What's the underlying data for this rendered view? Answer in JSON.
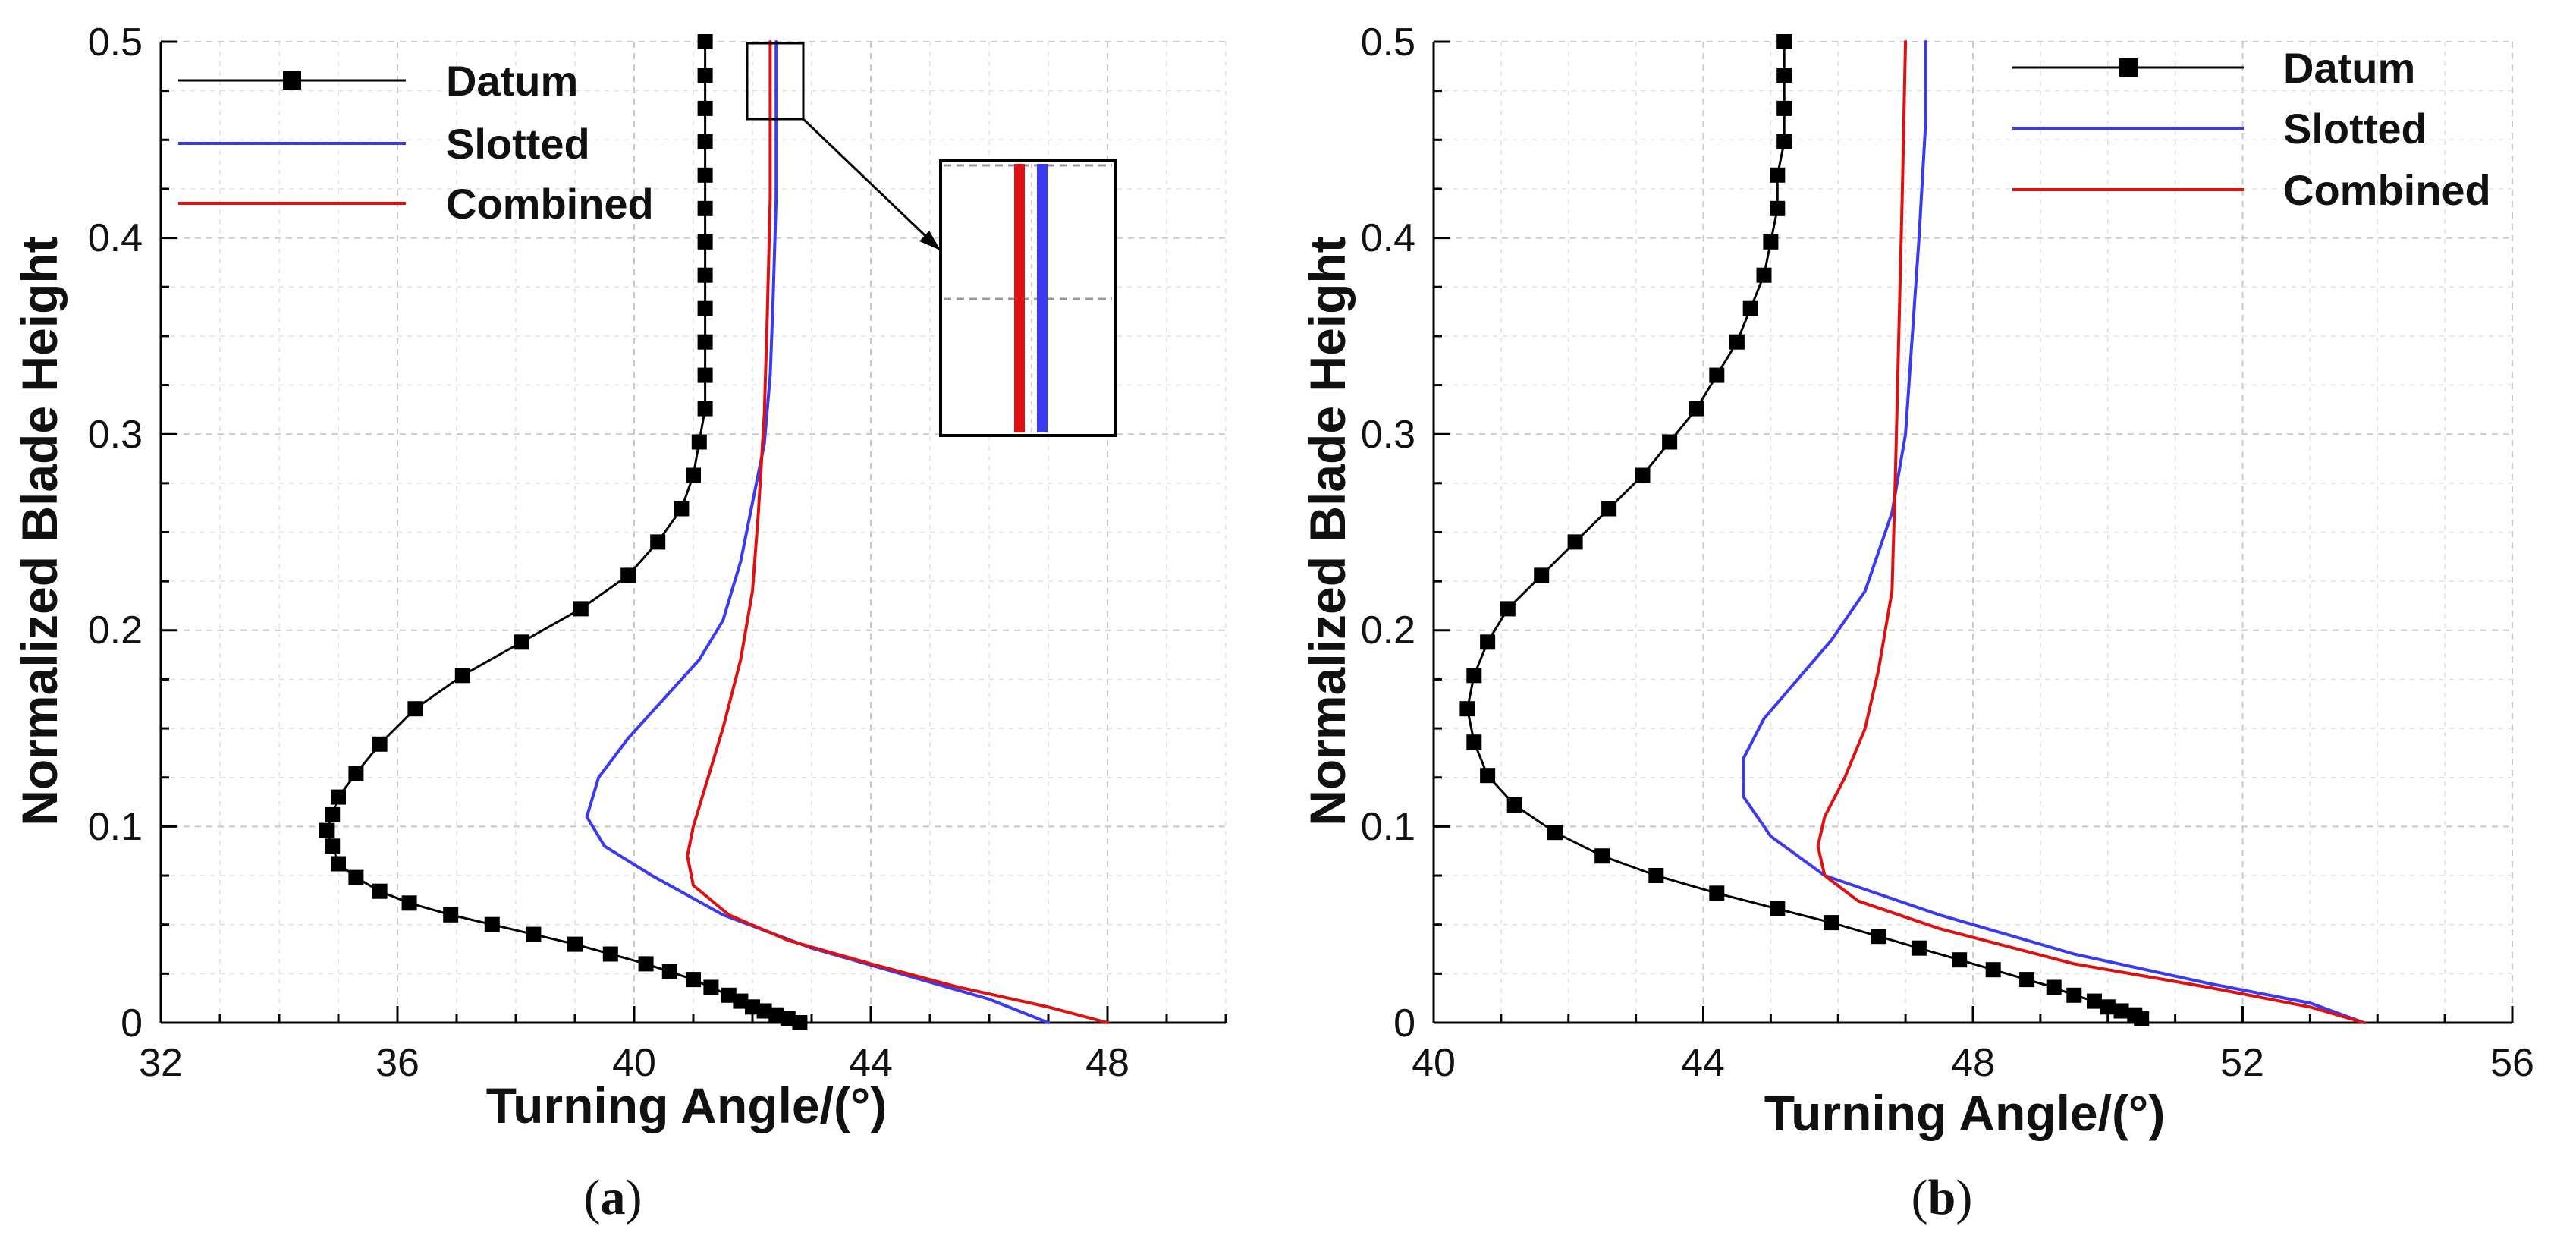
{
  "chart_data": [
    {
      "type": "line",
      "panel": "a",
      "panel_label": "a",
      "xlabel": "Turning Angle/(°)",
      "ylabel": "Normalized Blade Height",
      "xlim": [
        32,
        50
      ],
      "ylim": [
        0,
        0.5
      ],
      "xticks": [
        32,
        36,
        40,
        44,
        48
      ],
      "yticks": [
        0,
        0.1,
        0.2,
        0.3,
        0.4,
        0.5
      ],
      "grid": true,
      "legend": "top-left",
      "series": [
        {
          "name": "Datum",
          "color": "#000000",
          "marker": "square",
          "points": [
            [
              42.8,
              0.0
            ],
            [
              42.6,
              0.002
            ],
            [
              42.4,
              0.004
            ],
            [
              42.2,
              0.006
            ],
            [
              42.0,
              0.008
            ],
            [
              41.8,
              0.011
            ],
            [
              41.6,
              0.014
            ],
            [
              41.3,
              0.018
            ],
            [
              41.0,
              0.022
            ],
            [
              40.6,
              0.026
            ],
            [
              40.2,
              0.03
            ],
            [
              39.6,
              0.035
            ],
            [
              39.0,
              0.04
            ],
            [
              38.3,
              0.045
            ],
            [
              37.6,
              0.05
            ],
            [
              36.9,
              0.055
            ],
            [
              36.2,
              0.061
            ],
            [
              35.7,
              0.067
            ],
            [
              35.3,
              0.074
            ],
            [
              35.0,
              0.081
            ],
            [
              34.9,
              0.09
            ],
            [
              34.8,
              0.098
            ],
            [
              34.9,
              0.106
            ],
            [
              35.0,
              0.115
            ],
            [
              35.3,
              0.127
            ],
            [
              35.7,
              0.142
            ],
            [
              36.3,
              0.16
            ],
            [
              37.1,
              0.177
            ],
            [
              38.1,
              0.194
            ],
            [
              39.1,
              0.211
            ],
            [
              39.9,
              0.228
            ],
            [
              40.4,
              0.245
            ],
            [
              40.8,
              0.262
            ],
            [
              41.0,
              0.279
            ],
            [
              41.1,
              0.296
            ],
            [
              41.2,
              0.313
            ],
            [
              41.2,
              0.33
            ],
            [
              41.2,
              0.347
            ],
            [
              41.2,
              0.364
            ],
            [
              41.2,
              0.381
            ],
            [
              41.2,
              0.398
            ],
            [
              41.2,
              0.415
            ],
            [
              41.2,
              0.432
            ],
            [
              41.2,
              0.449
            ],
            [
              41.2,
              0.466
            ],
            [
              41.2,
              0.483
            ],
            [
              41.2,
              0.5
            ]
          ]
        },
        {
          "name": "Slotted",
          "color": "#3a3af0",
          "marker": "none",
          "points": [
            [
              47.0,
              0.0
            ],
            [
              46.0,
              0.012
            ],
            [
              44.5,
              0.025
            ],
            [
              43.0,
              0.038
            ],
            [
              41.5,
              0.055
            ],
            [
              40.3,
              0.075
            ],
            [
              39.5,
              0.09
            ],
            [
              39.2,
              0.105
            ],
            [
              39.4,
              0.125
            ],
            [
              39.9,
              0.145
            ],
            [
              40.5,
              0.165
            ],
            [
              41.1,
              0.185
            ],
            [
              41.5,
              0.205
            ],
            [
              41.8,
              0.235
            ],
            [
              42.0,
              0.265
            ],
            [
              42.2,
              0.295
            ],
            [
              42.3,
              0.33
            ],
            [
              42.35,
              0.37
            ],
            [
              42.4,
              0.42
            ],
            [
              42.4,
              0.5
            ]
          ]
        },
        {
          "name": "Combined",
          "color": "#dd1111",
          "marker": "none",
          "points": [
            [
              48.0,
              0.0
            ],
            [
              47.0,
              0.008
            ],
            [
              45.5,
              0.018
            ],
            [
              44.0,
              0.03
            ],
            [
              42.6,
              0.042
            ],
            [
              41.6,
              0.055
            ],
            [
              41.0,
              0.07
            ],
            [
              40.9,
              0.085
            ],
            [
              41.0,
              0.1
            ],
            [
              41.2,
              0.12
            ],
            [
              41.5,
              0.15
            ],
            [
              41.8,
              0.185
            ],
            [
              42.0,
              0.22
            ],
            [
              42.1,
              0.26
            ],
            [
              42.2,
              0.31
            ],
            [
              42.25,
              0.36
            ],
            [
              42.3,
              0.42
            ],
            [
              42.3,
              0.5
            ]
          ]
        }
      ]
    },
    {
      "type": "line",
      "panel": "b",
      "panel_label": "b",
      "xlabel": "Turning Angle/(°)",
      "ylabel": "Normalized Blade Height",
      "xlim": [
        40,
        56
      ],
      "ylim": [
        0,
        0.5
      ],
      "xticks": [
        40,
        44,
        48,
        52,
        56
      ],
      "yticks": [
        0,
        0.1,
        0.2,
        0.3,
        0.4,
        0.5
      ],
      "grid": true,
      "legend": "top-right",
      "series": [
        {
          "name": "Datum",
          "color": "#000000",
          "marker": "square",
          "points": [
            [
              50.5,
              0.002
            ],
            [
              50.4,
              0.004
            ],
            [
              50.2,
              0.006
            ],
            [
              50.0,
              0.008
            ],
            [
              49.8,
              0.011
            ],
            [
              49.5,
              0.014
            ],
            [
              49.2,
              0.018
            ],
            [
              48.8,
              0.022
            ],
            [
              48.3,
              0.027
            ],
            [
              47.8,
              0.032
            ],
            [
              47.2,
              0.038
            ],
            [
              46.6,
              0.044
            ],
            [
              45.9,
              0.051
            ],
            [
              45.1,
              0.058
            ],
            [
              44.2,
              0.066
            ],
            [
              43.3,
              0.075
            ],
            [
              42.5,
              0.085
            ],
            [
              41.8,
              0.097
            ],
            [
              41.2,
              0.111
            ],
            [
              40.8,
              0.126
            ],
            [
              40.6,
              0.143
            ],
            [
              40.5,
              0.16
            ],
            [
              40.6,
              0.177
            ],
            [
              40.8,
              0.194
            ],
            [
              41.1,
              0.211
            ],
            [
              41.6,
              0.228
            ],
            [
              42.1,
              0.245
            ],
            [
              42.6,
              0.262
            ],
            [
              43.1,
              0.279
            ],
            [
              43.5,
              0.296
            ],
            [
              43.9,
              0.313
            ],
            [
              44.2,
              0.33
            ],
            [
              44.5,
              0.347
            ],
            [
              44.7,
              0.364
            ],
            [
              44.9,
              0.381
            ],
            [
              45.0,
              0.398
            ],
            [
              45.1,
              0.415
            ],
            [
              45.1,
              0.432
            ],
            [
              45.2,
              0.449
            ],
            [
              45.2,
              0.466
            ],
            [
              45.2,
              0.483
            ],
            [
              45.2,
              0.5
            ]
          ]
        },
        {
          "name": "Slotted",
          "color": "#3a3af0",
          "marker": "none",
          "points": [
            [
              53.8,
              0.0
            ],
            [
              53.0,
              0.01
            ],
            [
              51.5,
              0.02
            ],
            [
              49.5,
              0.035
            ],
            [
              47.5,
              0.055
            ],
            [
              45.8,
              0.075
            ],
            [
              45.0,
              0.095
            ],
            [
              44.6,
              0.115
            ],
            [
              44.6,
              0.135
            ],
            [
              44.9,
              0.155
            ],
            [
              45.4,
              0.175
            ],
            [
              45.9,
              0.195
            ],
            [
              46.4,
              0.22
            ],
            [
              46.8,
              0.26
            ],
            [
              47.0,
              0.3
            ],
            [
              47.1,
              0.35
            ],
            [
              47.2,
              0.4
            ],
            [
              47.3,
              0.46
            ],
            [
              47.3,
              0.5
            ]
          ]
        },
        {
          "name": "Combined",
          "color": "#dd1111",
          "marker": "none",
          "points": [
            [
              53.8,
              0.0
            ],
            [
              53.0,
              0.008
            ],
            [
              51.5,
              0.018
            ],
            [
              49.5,
              0.03
            ],
            [
              47.5,
              0.048
            ],
            [
              46.3,
              0.062
            ],
            [
              45.8,
              0.075
            ],
            [
              45.7,
              0.09
            ],
            [
              45.8,
              0.105
            ],
            [
              46.1,
              0.125
            ],
            [
              46.4,
              0.15
            ],
            [
              46.6,
              0.18
            ],
            [
              46.8,
              0.22
            ],
            [
              46.85,
              0.28
            ],
            [
              46.9,
              0.35
            ],
            [
              46.95,
              0.42
            ],
            [
              47.0,
              0.5
            ]
          ]
        }
      ]
    }
  ]
}
